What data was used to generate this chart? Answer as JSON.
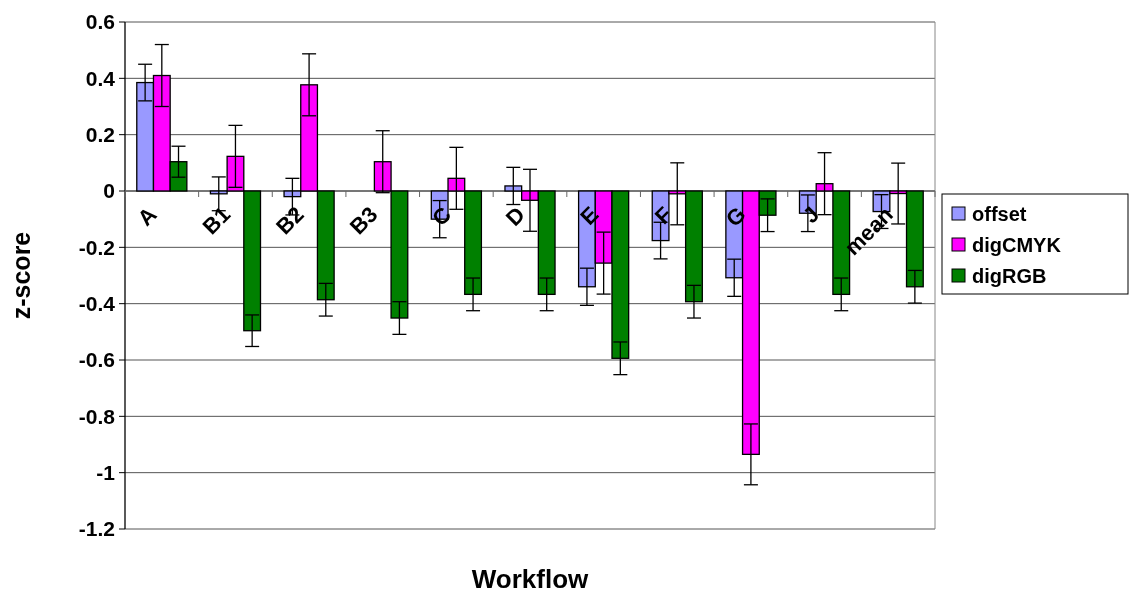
{
  "chart_data": {
    "type": "bar",
    "xlabel": "Workflow",
    "ylabel": "z-score",
    "categories": [
      "A",
      "B1",
      "B2",
      "B3",
      "C",
      "D",
      "E",
      "F",
      "G",
      "J",
      "mean"
    ],
    "series": [
      {
        "name": "offset",
        "color": "#9999ff",
        "values": [
          0.385,
          -0.01,
          -0.02,
          null,
          -0.1,
          0.018,
          -0.34,
          -0.176,
          -0.308,
          -0.079,
          -0.073
        ],
        "errors": [
          0.065,
          0.06,
          0.065,
          null,
          0.066,
          0.066,
          0.066,
          0.065,
          0.066,
          0.065,
          0.06
        ]
      },
      {
        "name": "digCMYK",
        "color": "#ff00ff",
        "values": [
          0.41,
          0.123,
          0.377,
          0.104,
          0.045,
          -0.033,
          -0.256,
          -0.01,
          -0.935,
          0.026,
          -0.009
        ],
        "errors": [
          0.11,
          0.11,
          0.11,
          0.11,
          0.11,
          0.11,
          0.11,
          0.11,
          0.108,
          0.11,
          0.108
        ]
      },
      {
        "name": "digRGB",
        "color": "#008000",
        "values": [
          0.104,
          -0.496,
          -0.386,
          -0.451,
          -0.367,
          -0.367,
          -0.594,
          -0.393,
          -0.086,
          -0.367,
          -0.34
        ],
        "errors": [
          0.055,
          0.056,
          0.058,
          0.058,
          0.058,
          0.058,
          0.058,
          0.058,
          0.058,
          0.058,
          0.058
        ]
      }
    ],
    "ylim": [
      -1.2,
      0.6
    ],
    "yticks": [
      -1.2,
      -1,
      -0.8,
      -0.6,
      -0.4,
      -0.2,
      0,
      0.2,
      0.4,
      0.6
    ],
    "grid": "y",
    "legend": "right"
  }
}
